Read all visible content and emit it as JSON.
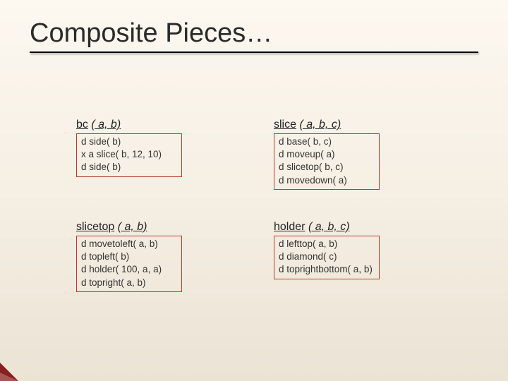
{
  "title": "Composite Pieces…",
  "blocks": [
    {
      "heading_name": "bc",
      "heading_params": "( a, b)",
      "lines": [
        "d side( b)",
        "x a slice( b, 12, 10)",
        "d side( b)"
      ]
    },
    {
      "heading_name": "slice",
      "heading_params": "( a, b, c)",
      "lines": [
        "d base( b, c)",
        "d moveup( a)",
        "d slicetop( b, c)",
        "d movedown( a)"
      ]
    },
    {
      "heading_name": "slicetop",
      "heading_params": "( a, b)",
      "lines": [
        "d movetoleft( a, b)",
        "d topleft( b)",
        "d holder( 100, a, a)",
        "d topright( a, b)"
      ]
    },
    {
      "heading_name": "holder",
      "heading_params": "( a, b, c)",
      "lines": [
        "d lefttop( a, b)",
        "d diamond( c)",
        "d toprightbottom( a, b)"
      ]
    }
  ],
  "colors": {
    "box_border": "#c0392b",
    "corner": "#8a1d1d"
  }
}
